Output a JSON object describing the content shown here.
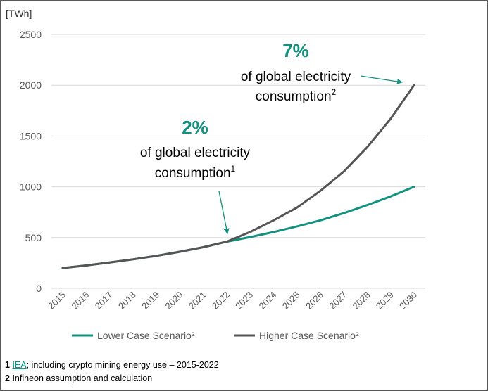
{
  "colors": {
    "lower": "#13917f",
    "higher": "#555555",
    "accent": "#13917f",
    "axis_text": "#595959",
    "grid": "#d9d9d9"
  },
  "chart_data": {
    "type": "line",
    "title": "",
    "ylabel": "[TWh]",
    "xlabel": "",
    "categories": [
      "2015",
      "2016",
      "2017",
      "2018",
      "2019",
      "2020",
      "2021",
      "2022",
      "2023",
      "2024",
      "2025",
      "2026",
      "2027",
      "2028",
      "2029",
      "2030"
    ],
    "ylim": [
      0,
      2500
    ],
    "yticks": [
      0,
      500,
      1000,
      1500,
      2000,
      2500
    ],
    "series": [
      {
        "name": "Lower Case Scenario²",
        "key": "lower",
        "values": [
          200,
          225,
          255,
          285,
          320,
          360,
          405,
          460,
          505,
          555,
          610,
          670,
          740,
          820,
          905,
          1000
        ]
      },
      {
        "name": "Higher Case Scenario²",
        "key": "higher",
        "values": [
          200,
          225,
          255,
          285,
          320,
          360,
          405,
          460,
          555,
          670,
          795,
          960,
          1150,
          1390,
          1670,
          2000
        ]
      }
    ],
    "annotations": [
      {
        "key": "a2",
        "big": "2%",
        "line1": "of global electricity",
        "line2": "consumption",
        "sup": "1"
      },
      {
        "key": "a7",
        "big": "7%",
        "line1": "of global electricity",
        "line2": "consumption",
        "sup": "2"
      }
    ],
    "legend_position": "bottom"
  },
  "footnotes": {
    "n1": "1",
    "n1_link": "IEA",
    "n1_text": "; including crypto mining energy use – 2015-2022",
    "n2": "2",
    "n2_text": "Infineon assumption and calculation"
  }
}
